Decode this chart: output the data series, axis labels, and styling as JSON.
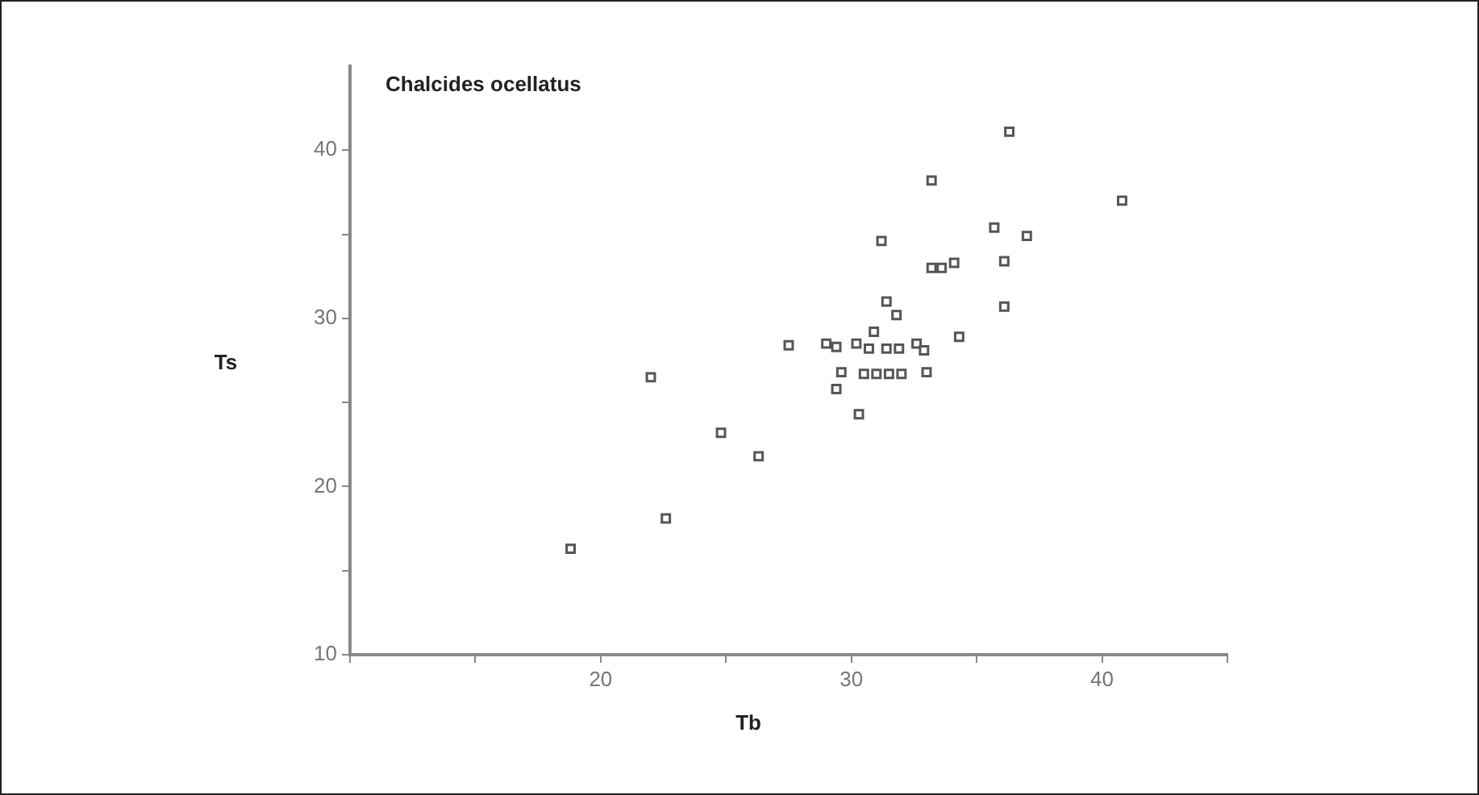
{
  "chart_data": {
    "type": "scatter",
    "title": "Chalcides ocellatus",
    "xlabel": "Tb",
    "ylabel": "Ts",
    "x": [
      18.8,
      22.0,
      22.6,
      24.8,
      26.3,
      27.5,
      36.3,
      33.2,
      40.8,
      35.7,
      37.0,
      31.2,
      33.2,
      33.6,
      34.1,
      36.1,
      31.4,
      31.8,
      36.1,
      30.9,
      34.3,
      29.0,
      29.4,
      30.2,
      30.7,
      31.4,
      31.9,
      32.6,
      32.9,
      29.6,
      30.5,
      31.0,
      31.5,
      32.0,
      33.0,
      29.4,
      30.3
    ],
    "series": [
      {
        "color": "#555555",
        "values": [
          16.3,
          26.5,
          18.1,
          23.2,
          21.8,
          28.4,
          41.1,
          38.2,
          37.0,
          35.4,
          34.9,
          34.6,
          33.0,
          33.0,
          33.3,
          33.4,
          31.0,
          30.2,
          30.7,
          29.2,
          28.9,
          28.5,
          28.3,
          28.5,
          28.2,
          28.2,
          28.2,
          28.5,
          28.1,
          26.8,
          26.7,
          26.7,
          26.7,
          26.7,
          26.8,
          25.8,
          24.3
        ]
      }
    ],
    "xlim": [
      10,
      45
    ],
    "xticks": [
      {
        "value": 10,
        "label": null
      },
      {
        "value": 15,
        "label": null
      },
      20,
      {
        "value": 25,
        "label": null
      },
      30,
      {
        "value": 35,
        "label": null
      },
      40,
      {
        "value": 45,
        "label": null
      }
    ],
    "ylim": [
      10,
      45
    ],
    "yticks": [
      10,
      {
        "value": 15,
        "label": null
      },
      20,
      {
        "value": 25,
        "label": null
      },
      30,
      {
        "value": 35,
        "label": null
      },
      40
    ],
    "marker": "square",
    "grid": false,
    "legend": false
  }
}
